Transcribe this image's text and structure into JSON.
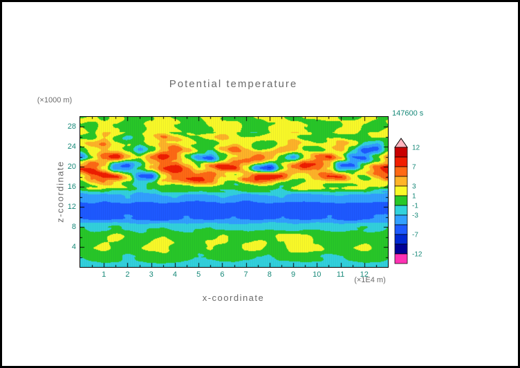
{
  "plot": {
    "title": "Potential temperature",
    "timestamp": "147600 s",
    "y_unit": "(×1000 m)",
    "x_unit": "(×1E4 m)",
    "x_label": "x-coordinate",
    "y_label": "z-coordinate"
  },
  "ui_colors": {
    "background": "#ffffff",
    "frame": "#000000",
    "text_gray": "#6a6a6a",
    "text_teal": "#168878"
  },
  "colorbar": {
    "label_values": [
      12,
      7,
      3,
      1,
      -1,
      -3,
      -7,
      -12
    ],
    "labels": [
      "12",
      "7",
      "3",
      "1",
      "-1",
      "-3",
      "-7",
      "-12"
    ]
  },
  "chart_data": {
    "type": "heatmap",
    "title": "Potential temperature",
    "xlabel": "x-coordinate (×1E4 m)",
    "ylabel": "z-coordinate (×1000 m)",
    "timestamp": "147600 s",
    "x_range": [
      0,
      13
    ],
    "z_range": [
      0,
      30
    ],
    "x_ticks": [
      1,
      2,
      3,
      4,
      5,
      6,
      7,
      8,
      9,
      10,
      11,
      12
    ],
    "z_ticks": [
      4,
      8,
      12,
      16,
      20,
      24,
      28
    ],
    "levels": [
      -12,
      -10,
      -7,
      -5,
      -3,
      -1,
      1,
      3,
      5,
      7,
      10,
      12
    ],
    "colors": [
      "#ff32b4",
      "#000096",
      "#0028d2",
      "#1e5aff",
      "#32a0ff",
      "#32d2dc",
      "#28c828",
      "#fafa28",
      "#ffb428",
      "#ff6914",
      "#f01e00",
      "#c80000",
      "#ffb4be"
    ],
    "x": [
      0,
      0.5,
      1,
      1.5,
      2,
      2.5,
      3,
      3.5,
      4,
      4.5,
      5,
      5.5,
      6,
      6.5,
      7,
      7.5,
      8,
      8.5,
      9,
      9.5,
      10,
      10.5,
      11,
      11.5,
      12,
      12.5,
      13
    ],
    "z": [
      0,
      2,
      4,
      6,
      8,
      10,
      12,
      14,
      16,
      18,
      20,
      22,
      24,
      26,
      28,
      30
    ],
    "values": [
      [
        -2,
        -2,
        -2,
        -2,
        -2,
        -2,
        -2,
        -2,
        -2,
        -2,
        -2,
        -2,
        -2,
        -2,
        -2,
        -2,
        -2,
        -2,
        -2,
        -2,
        -2,
        -2,
        -2,
        -2,
        -2,
        -2,
        -2
      ],
      [
        -1,
        -0.5,
        0,
        -0.5,
        -1.5,
        -0.5,
        0,
        0.5,
        0,
        -0.5,
        -1.5,
        -1,
        -0.5,
        0,
        -0.5,
        -1,
        -1.5,
        -0.5,
        0,
        0,
        -0.5,
        -1.5,
        -1,
        -0.5,
        0,
        -0.5,
        -1
      ],
      [
        0,
        0.5,
        1.5,
        0.5,
        0,
        0.5,
        1.5,
        2,
        0.5,
        0,
        0.5,
        1.5,
        0.5,
        0,
        1.5,
        2,
        0.5,
        0.5,
        2,
        2.5,
        1.5,
        0.5,
        0,
        0.5,
        1.5,
        0.5,
        0
      ],
      [
        0.5,
        0,
        0.5,
        1.5,
        0.5,
        0,
        0.5,
        1.5,
        0.5,
        0.5,
        0,
        0.5,
        1.5,
        0.5,
        0,
        0.5,
        0.5,
        1.5,
        2,
        1.5,
        0.5,
        0,
        0.5,
        0.5,
        0,
        0.5,
        0.5
      ],
      [
        -1,
        -1.5,
        -1,
        -0.5,
        -1.5,
        -2,
        -1.5,
        -1,
        -1.5,
        -2,
        -1.5,
        -1,
        -1.5,
        -2,
        -2,
        -1.5,
        -1,
        -1.5,
        -2,
        -1.5,
        -1,
        -1.5,
        -2,
        -1.5,
        -1,
        -1.5,
        -1
      ],
      [
        -5,
        -5.5,
        -6,
        -5.5,
        -5,
        -5.5,
        -6,
        -6,
        -5.5,
        -5,
        -5.5,
        -6,
        -5.5,
        -5,
        -5.5,
        -6,
        -5.5,
        -5,
        -5.5,
        -6,
        -5.5,
        -5,
        -5.5,
        -6,
        -5.5,
        -5,
        -5
      ],
      [
        -6,
        -6,
        -6.5,
        -6,
        -6,
        -6.5,
        -6,
        -6,
        -6.5,
        -6,
        -6,
        -6.5,
        -6,
        -6,
        -6.5,
        -6,
        -6,
        -6.5,
        -6,
        -6,
        -6.5,
        -6,
        -6,
        -6.5,
        -6,
        -6,
        -6
      ],
      [
        -4,
        -3.5,
        -4.5,
        -4,
        -3,
        -4,
        -4.5,
        -3.5,
        -3,
        -4,
        -4.5,
        -4,
        -3,
        -3.5,
        -4.5,
        -4,
        -3.5,
        -3,
        -4,
        -4.5,
        -4,
        -3.5,
        -3,
        -3.5,
        -4,
        -4.5,
        -4
      ],
      [
        -1,
        0.5,
        1.5,
        0.5,
        -0.5,
        -2,
        0,
        1.5,
        0.5,
        0,
        1.5,
        2,
        0.5,
        -0.5,
        0.5,
        1.5,
        0.5,
        -1.5,
        0,
        1.5,
        2,
        0.5,
        -0.5,
        0.5,
        1.5,
        0.5,
        -1
      ],
      [
        2,
        6,
        8,
        7,
        3,
        -4,
        -5,
        2,
        6,
        8,
        8,
        6,
        2,
        1,
        5,
        8,
        8,
        6,
        2,
        1,
        3,
        6,
        7,
        3,
        1,
        4,
        7
      ],
      [
        7,
        8,
        3,
        -5,
        -6,
        -2,
        3,
        7,
        8,
        4,
        1,
        5,
        8,
        7,
        2,
        -4,
        -6,
        1,
        5,
        8,
        7,
        3,
        -5,
        -4,
        2,
        6,
        8
      ],
      [
        -4,
        1,
        5,
        7,
        3,
        1,
        4,
        7,
        5,
        1,
        -3,
        -5,
        0,
        4,
        6,
        7,
        4,
        1,
        -2,
        2,
        5,
        6,
        2,
        -5,
        -6,
        -1,
        3
      ],
      [
        1,
        3,
        5,
        2,
        0,
        -3,
        1,
        4,
        6,
        3,
        1,
        0,
        3,
        5,
        2,
        0,
        1,
        3,
        4,
        1,
        0,
        2,
        4,
        1,
        -4,
        -5,
        0
      ],
      [
        2,
        1,
        3,
        1,
        0,
        1,
        2,
        4,
        2,
        1,
        0,
        1,
        3,
        2,
        1,
        0,
        1,
        2,
        3,
        1,
        0,
        1,
        2,
        1,
        0,
        1,
        2
      ],
      [
        1,
        0.5,
        2,
        1,
        0,
        0.5,
        1.5,
        2,
        1,
        0.5,
        0,
        1,
        2,
        1.5,
        0.5,
        0,
        1,
        1.5,
        2,
        1,
        0.5,
        0,
        1,
        2,
        1,
        0.5,
        1
      ],
      [
        1,
        1,
        0.5,
        1.5,
        1,
        0.5,
        1,
        1.5,
        1,
        0.5,
        1,
        1.5,
        1,
        1,
        0.5,
        1,
        1.5,
        1,
        0.5,
        1,
        1,
        1.5,
        1,
        0.5,
        1,
        1,
        1
      ]
    ]
  }
}
